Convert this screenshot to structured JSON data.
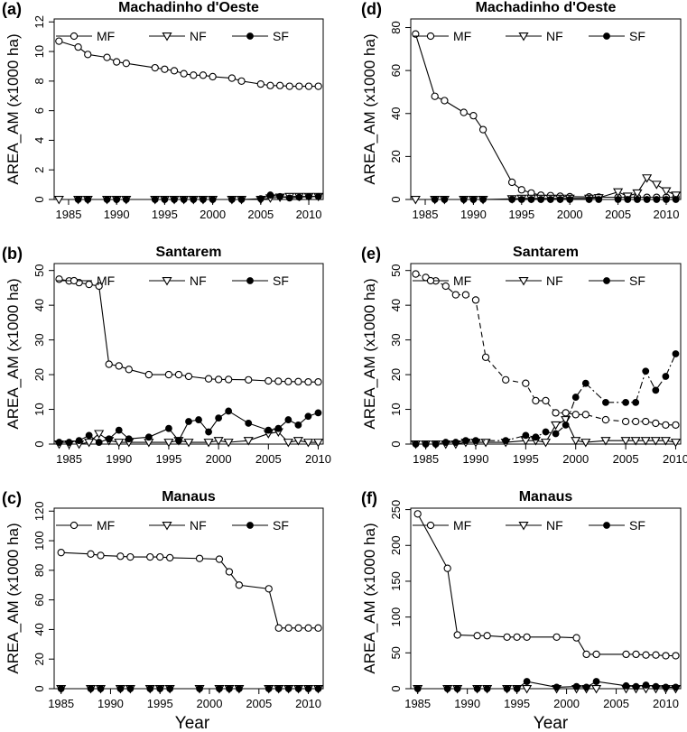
{
  "x_axis_label": "Year",
  "chart_data": [
    {
      "id": "a",
      "panel_label": "(a)",
      "type": "line",
      "title": "Machadinho d'Oeste",
      "ylabel": "AREA_AM (x1000 ha)",
      "xlim": [
        1983.5,
        2011.5
      ],
      "ylim": [
        0,
        12.2
      ],
      "xticks": [
        "1985",
        "1990",
        "1995",
        "2000",
        "2005",
        "2010"
      ],
      "yticks": [
        "0",
        "2",
        "4",
        "6",
        "8",
        "10",
        "12"
      ],
      "legend": [
        "MF",
        "NF",
        "SF"
      ],
      "series": [
        {
          "name": "MF",
          "marker": "open-circle",
          "linestyle": "solid",
          "x": [
            1984,
            1986,
            1987,
            1989,
            1990,
            1991,
            1994,
            1995,
            1996,
            1997,
            1998,
            1999,
            2000,
            2002,
            2003,
            2005,
            2006,
            2007,
            2008,
            2009,
            2010,
            2011
          ],
          "y": [
            10.7,
            10.3,
            9.8,
            9.6,
            9.3,
            9.2,
            8.9,
            8.8,
            8.7,
            8.5,
            8.4,
            8.4,
            8.3,
            8.2,
            8.0,
            7.8,
            7.7,
            7.7,
            7.65,
            7.65,
            7.65,
            7.65
          ]
        },
        {
          "name": "NF",
          "marker": "open-triangle",
          "linestyle": "solid",
          "x": [
            1984,
            1986,
            1987,
            1989,
            1990,
            1991,
            1994,
            1995,
            1996,
            1997,
            1998,
            1999,
            2000,
            2002,
            2003,
            2005,
            2006,
            2007,
            2008,
            2009,
            2010,
            2011
          ],
          "y": [
            0,
            0,
            0,
            0,
            0,
            0,
            0,
            0,
            0,
            0,
            0,
            0,
            0,
            0,
            0,
            0,
            0.1,
            0.15,
            0.2,
            0.2,
            0.2,
            0.2
          ]
        },
        {
          "name": "SF",
          "marker": "filled-circle",
          "linestyle": "solid",
          "x": [
            1986,
            1987,
            1989,
            1990,
            1991,
            1994,
            1995,
            1996,
            1997,
            1998,
            1999,
            2000,
            2002,
            2003,
            2005,
            2006,
            2007,
            2008,
            2009,
            2010,
            2011
          ],
          "y": [
            0,
            0,
            0,
            0,
            0,
            0,
            0,
            0,
            0,
            0,
            0,
            0,
            0,
            0,
            0.05,
            0.3,
            0.2,
            0.1,
            0.15,
            0.2,
            0.2
          ]
        }
      ]
    },
    {
      "id": "d",
      "panel_label": "(d)",
      "type": "line",
      "title": "Machadinho d'Oeste",
      "ylabel": "AREA_AM (x1000 ha)",
      "xlim": [
        1983.5,
        2011.5
      ],
      "ylim": [
        0,
        84
      ],
      "xticks": [
        "1985",
        "1990",
        "1995",
        "2000",
        "2005",
        "2010"
      ],
      "yticks": [
        "0",
        "20",
        "40",
        "60",
        "80"
      ],
      "legend": [
        "MF",
        "NF",
        "SF"
      ],
      "series": [
        {
          "name": "MF",
          "marker": "open-circle",
          "linestyle": "solid",
          "x": [
            1984,
            1986,
            1987,
            1989,
            1990,
            1991,
            1994,
            1995,
            1996,
            1997,
            1998,
            1999,
            2000,
            2002,
            2003,
            2005,
            2006,
            2007,
            2008,
            2009,
            2010,
            2011
          ],
          "y": [
            77,
            48,
            46,
            40.5,
            39,
            32.5,
            8,
            4.5,
            3,
            2,
            1.8,
            1.5,
            1.3,
            1.2,
            1.1,
            1.0,
            1.0,
            1.0,
            1.0,
            1.0,
            1.0,
            1.0
          ]
        },
        {
          "name": "NF",
          "marker": "open-triangle",
          "linestyle": "solid",
          "x": [
            1984,
            1986,
            1987,
            1989,
            1990,
            1991,
            1994,
            1995,
            1996,
            1997,
            1998,
            1999,
            2000,
            2002,
            2003,
            2005,
            2006,
            2007,
            2008,
            2009,
            2010,
            2011
          ],
          "y": [
            0,
            0,
            0,
            0,
            0,
            0,
            0.3,
            0.5,
            0.5,
            0.5,
            0.5,
            0.5,
            0.5,
            0.5,
            0.8,
            3.5,
            1.5,
            3,
            10,
            7,
            4,
            2
          ]
        },
        {
          "name": "SF",
          "marker": "filled-circle",
          "linestyle": "solid",
          "x": [
            1986,
            1987,
            1989,
            1990,
            1991,
            1994,
            1995,
            1996,
            1997,
            1998,
            1999,
            2000,
            2002,
            2003,
            2005,
            2006,
            2007,
            2008,
            2009,
            2010,
            2011
          ],
          "y": [
            0,
            0,
            0,
            0,
            0,
            0,
            0,
            0,
            0,
            0,
            0,
            0,
            0,
            0,
            0,
            0,
            0,
            0,
            0,
            0,
            0
          ]
        }
      ]
    },
    {
      "id": "b",
      "panel_label": "(b)",
      "type": "line",
      "title": "Santarem",
      "ylabel": "AREA_AM (x1000 ha)",
      "xlim": [
        1983.5,
        2010.5
      ],
      "ylim": [
        0,
        52
      ],
      "xticks": [
        "1985",
        "1990",
        "1995",
        "2000",
        "2005",
        "2010"
      ],
      "yticks": [
        "0",
        "10",
        "20",
        "30",
        "40",
        "50"
      ],
      "legend": [
        "MF",
        "NF",
        "SF"
      ],
      "series": [
        {
          "name": "MF",
          "marker": "open-circle",
          "linestyle": "solid",
          "x": [
            1984,
            1985,
            1986,
            1987,
            1988,
            1989,
            1990,
            1991,
            1993,
            1995,
            1996,
            1997,
            1999,
            2000,
            2001,
            2003,
            2005,
            2006,
            2007,
            2008,
            2009,
            2010
          ],
          "y": [
            47.5,
            47,
            46.5,
            46,
            45.5,
            23,
            22.5,
            21.5,
            20,
            20,
            20,
            19.5,
            18.8,
            18.6,
            18.6,
            18.5,
            18.2,
            18.1,
            18,
            18,
            17.9,
            17.9
          ]
        },
        {
          "name": "NF",
          "marker": "open-triangle",
          "linestyle": "solid",
          "x": [
            1984,
            1985,
            1986,
            1987,
            1988,
            1989,
            1990,
            1991,
            1993,
            1995,
            1996,
            1997,
            1999,
            2000,
            2001,
            2003,
            2005,
            2006,
            2007,
            2008,
            2009,
            2010
          ],
          "y": [
            0,
            0,
            0,
            0.5,
            3,
            1,
            0.5,
            0.5,
            0.5,
            0.5,
            1,
            0.5,
            0.5,
            1,
            0.5,
            1,
            3,
            3.5,
            0.5,
            1,
            0.5,
            0.5
          ]
        },
        {
          "name": "SF",
          "marker": "filled-circle",
          "linestyle": "solid",
          "x": [
            1984,
            1985,
            1986,
            1987,
            1988,
            1989,
            1990,
            1991,
            1993,
            1995,
            1996,
            1997,
            1998,
            1999,
            2000,
            2001,
            2003,
            2005,
            2006,
            2007,
            2008,
            2009,
            2010
          ],
          "y": [
            0.5,
            0.5,
            1,
            2.5,
            0.5,
            1.5,
            4,
            1.5,
            2,
            4.5,
            1,
            6.5,
            7,
            3.5,
            7.5,
            9.5,
            6,
            4,
            4.5,
            7,
            5.5,
            8,
            9
          ]
        }
      ]
    },
    {
      "id": "e",
      "panel_label": "(e)",
      "type": "line",
      "title": "Santarem",
      "ylabel": "AREA_AM (x1000 ha)",
      "xlim": [
        1983.5,
        2010.5
      ],
      "ylim": [
        0,
        52
      ],
      "xticks": [
        "1985",
        "1990",
        "1995",
        "2000",
        "2005",
        "2010"
      ],
      "yticks": [
        "0",
        "10",
        "20",
        "30",
        "40",
        "50"
      ],
      "legend": [
        "MF",
        "NF",
        "SF"
      ],
      "series": [
        {
          "name": "MF",
          "marker": "open-circle",
          "linestyle": "dashed",
          "x": [
            1984,
            1985,
            1986,
            1987,
            1988,
            1989,
            1990,
            1991,
            1993,
            1995,
            1996,
            1997,
            1998,
            1999,
            2000,
            2001,
            2003,
            2005,
            2006,
            2007,
            2008,
            2009,
            2010
          ],
          "y": [
            49,
            48,
            47,
            45.5,
            43,
            43,
            41.5,
            25,
            18.5,
            17.5,
            12.5,
            12.5,
            9,
            9,
            8.5,
            8.5,
            7,
            6.5,
            6.5,
            6.5,
            6,
            5.5,
            5.5
          ]
        },
        {
          "name": "NF",
          "marker": "open-triangle",
          "linestyle": "solid",
          "x": [
            1984,
            1985,
            1986,
            1987,
            1988,
            1989,
            1990,
            1991,
            1993,
            1995,
            1996,
            1997,
            1998,
            1999,
            2000,
            2001,
            2003,
            2005,
            2006,
            2007,
            2008,
            2009,
            2010
          ],
          "y": [
            0,
            0,
            0,
            0,
            0,
            0.5,
            0.5,
            0.5,
            0.5,
            1,
            1,
            0.5,
            5.5,
            7,
            1,
            0.5,
            1,
            1,
            1,
            1,
            1,
            1,
            0.5
          ]
        },
        {
          "name": "SF",
          "marker": "filled-circle",
          "linestyle": "dashdot",
          "x": [
            1984,
            1985,
            1986,
            1987,
            1988,
            1989,
            1990,
            1993,
            1995,
            1996,
            1997,
            1998,
            1999,
            2000,
            2001,
            2003,
            2005,
            2006,
            2007,
            2008,
            2009,
            2010
          ],
          "y": [
            0,
            0,
            0,
            0.5,
            0.5,
            1,
            1,
            1,
            2.5,
            2,
            3.5,
            3,
            5.5,
            13.5,
            17.5,
            12,
            12,
            12,
            21,
            15.5,
            19.5,
            26
          ]
        }
      ]
    },
    {
      "id": "c",
      "panel_label": "(c)",
      "type": "line",
      "title": "Manaus",
      "ylabel": "AREA_AM (x1000 ha)",
      "xlim": [
        1984.3,
        2011.5
      ],
      "ylim": [
        0,
        122
      ],
      "xticks": [
        "1985",
        "1990",
        "1995",
        "2000",
        "2005",
        "2010"
      ],
      "yticks": [
        "0",
        "20",
        "40",
        "60",
        "80",
        "100",
        "120"
      ],
      "legend": [
        "MF",
        "NF",
        "SF"
      ],
      "series": [
        {
          "name": "MF",
          "marker": "open-circle",
          "linestyle": "solid",
          "x": [
            1985,
            1988,
            1989,
            1991,
            1992,
            1994,
            1995,
            1996,
            1999,
            2001,
            2002,
            2003,
            2006,
            2007,
            2008,
            2009,
            2010,
            2011
          ],
          "y": [
            92,
            91,
            90,
            89.5,
            89,
            89,
            89,
            88.5,
            88,
            87.5,
            79,
            70,
            67.5,
            41,
            41,
            41,
            41,
            41
          ]
        },
        {
          "name": "NF",
          "marker": "open-triangle",
          "linestyle": "solid",
          "x": [
            1985,
            1988,
            1989,
            1991,
            1992,
            1994,
            1995,
            1996,
            1999,
            2001,
            2002,
            2003,
            2006,
            2007,
            2008,
            2009,
            2010,
            2011
          ],
          "y": [
            0,
            0,
            0,
            0,
            0,
            0,
            0,
            0,
            0,
            0,
            0,
            0,
            0,
            0,
            0,
            0,
            0,
            0
          ]
        },
        {
          "name": "SF",
          "marker": "filled-circle",
          "linestyle": "solid",
          "x": [
            1985,
            1988,
            1989,
            1991,
            1992,
            1994,
            1995,
            1996,
            1999,
            2001,
            2002,
            2003,
            2006,
            2007,
            2008,
            2009,
            2010,
            2011
          ],
          "y": [
            0,
            0,
            0,
            0,
            0,
            0,
            0,
            0,
            0,
            0,
            0,
            0,
            0,
            0,
            0,
            0,
            0,
            0
          ]
        }
      ]
    },
    {
      "id": "f",
      "panel_label": "(f)",
      "type": "line",
      "title": "Manaus",
      "ylabel": "AREA_AM (x1000 ha)",
      "xlim": [
        1984.3,
        2011.5
      ],
      "ylim": [
        0,
        252
      ],
      "xticks": [
        "1985",
        "1990",
        "1995",
        "2000",
        "2005",
        "2010"
      ],
      "yticks": [
        "0",
        "50",
        "100",
        "150",
        "200",
        "250"
      ],
      "legend": [
        "MF",
        "NF",
        "SF"
      ],
      "series": [
        {
          "name": "MF",
          "marker": "open-circle",
          "linestyle": "solid",
          "x": [
            1985,
            1988,
            1989,
            1991,
            1992,
            1994,
            1995,
            1996,
            1999,
            2001,
            2002,
            2003,
            2006,
            2007,
            2008,
            2009,
            2010,
            2011
          ],
          "y": [
            244,
            168,
            75,
            74,
            74,
            72,
            72,
            72,
            72,
            71,
            48,
            48,
            48,
            48,
            47,
            47,
            46,
            46
          ]
        },
        {
          "name": "NF",
          "marker": "open-triangle",
          "linestyle": "solid",
          "x": [
            1985,
            1988,
            1989,
            1991,
            1992,
            1994,
            1995,
            1996,
            1999,
            2001,
            2002,
            2003,
            2006,
            2007,
            2008,
            2009,
            2010,
            2011
          ],
          "y": [
            0,
            0,
            0,
            0,
            0,
            0,
            0,
            0,
            0,
            0,
            0,
            0,
            0,
            0,
            0,
            0,
            0,
            0
          ]
        },
        {
          "name": "SF",
          "marker": "filled-circle",
          "linestyle": "solid",
          "x": [
            1985,
            1988,
            1989,
            1991,
            1992,
            1994,
            1995,
            1996,
            1999,
            2001,
            2002,
            2003,
            2006,
            2007,
            2008,
            2009,
            2010,
            2011
          ],
          "y": [
            0,
            0,
            0,
            0,
            0,
            0,
            0,
            10,
            2,
            3,
            2,
            10,
            4,
            3,
            5,
            3,
            2,
            2
          ]
        }
      ]
    }
  ]
}
